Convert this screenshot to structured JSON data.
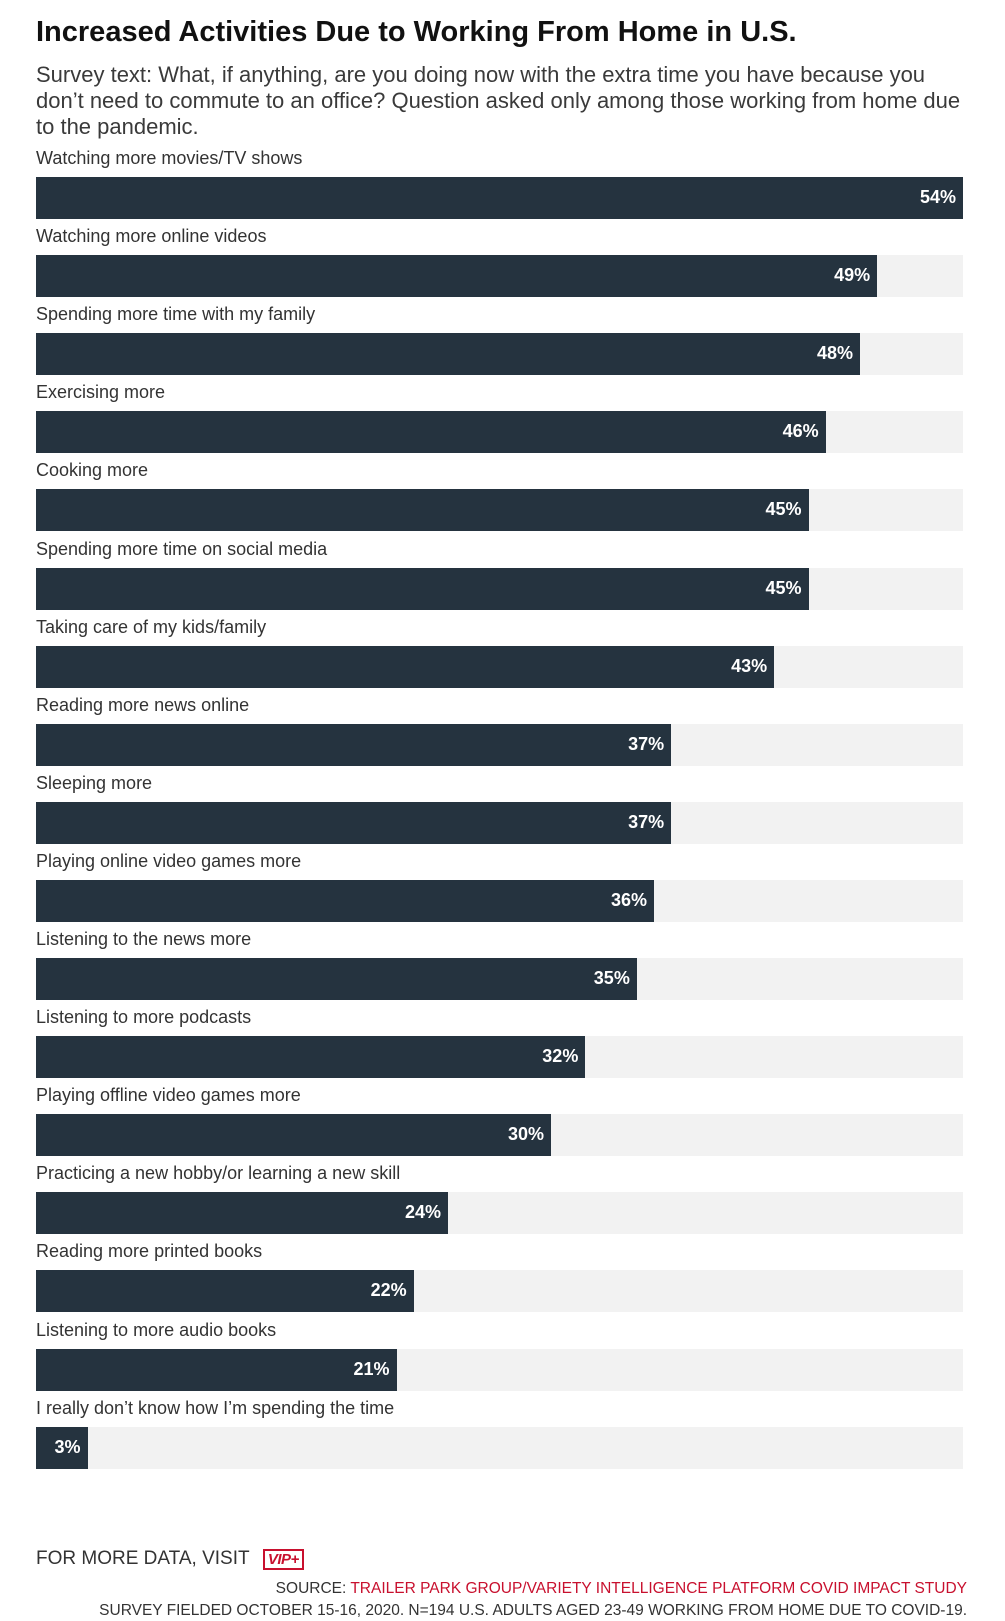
{
  "chart_data": {
    "type": "bar",
    "orientation": "horizontal",
    "title": "Increased Activities Due to Working From Home in U.S.",
    "subtitle": "Survey text: What, if anything, are you doing now with the extra time you have because you don’t need to commute to an office? Question asked only among those working from home due to the pandemic.",
    "categories": [
      "Watching more movies/TV shows",
      "Watching more online videos",
      "Spending more time with my family",
      "Exercising more",
      "Cooking more",
      "Spending more time on social media",
      "Taking care of my kids/family",
      "Reading more news online",
      "Sleeping more",
      "Playing online video games more",
      "Listening to the news more",
      "Listening to more podcasts",
      "Playing offline video games more",
      "Practicing a new hobby/or learning a new skill",
      "Reading more printed books",
      "Listening to more audio books",
      "I really don’t know how I’m spending the time"
    ],
    "values": [
      54,
      49,
      48,
      46,
      45,
      45,
      43,
      37,
      37,
      36,
      35,
      32,
      30,
      24,
      22,
      21,
      3
    ],
    "value_labels": [
      "54%",
      "49%",
      "48%",
      "46%",
      "45%",
      "45%",
      "43%",
      "37%",
      "37%",
      "36%",
      "35%",
      "32%",
      "30%",
      "24%",
      "22%",
      "21%",
      "3%"
    ],
    "xlim": [
      0,
      54
    ],
    "grid": false,
    "bar_color": "#25333f",
    "track_color": "#f2f2f2"
  },
  "footer": {
    "more_data_text": "FOR MORE DATA, VISIT",
    "vip_logo": "VIP+",
    "source_prefix": "SOURCE:",
    "source_name": "TRAILER PARK GROUP/VARIETY INTELLIGENCE PLATFORM COVID IMPACT STUDY",
    "survey_note": "SURVEY FIELDED OCTOBER 15-16, 2020. N=194 U.S. ADULTS AGED 23-49 WORKING FROM HOME DUE TO COVID-19."
  },
  "colors": {
    "accent": "#c8102e",
    "bar": "#25333f",
    "track": "#f2f2f2"
  }
}
